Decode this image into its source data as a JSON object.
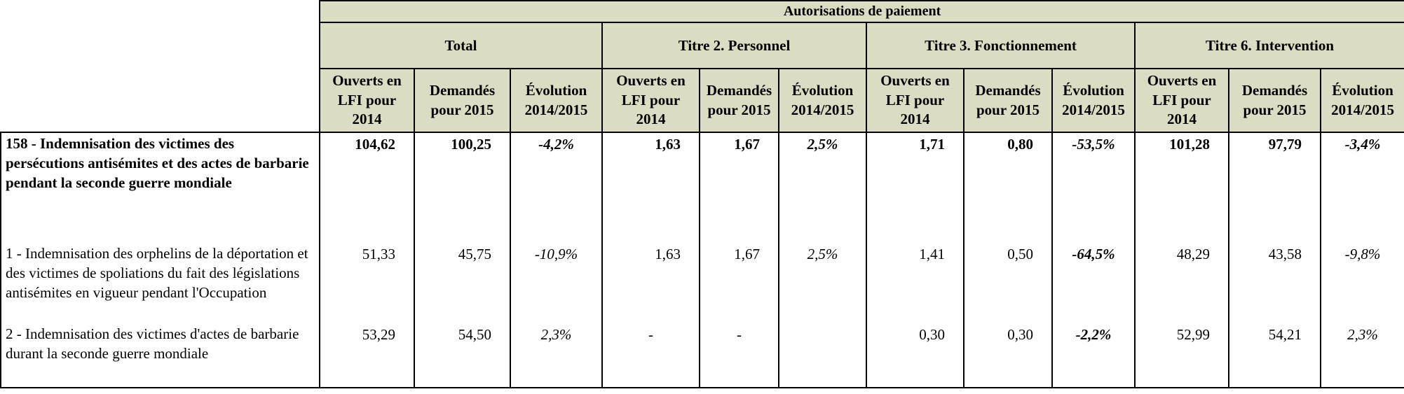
{
  "table": {
    "top_header": "Autorisations de paiement",
    "groups": [
      {
        "label": "Total"
      },
      {
        "label": "Titre 2. Personnel"
      },
      {
        "label": "Titre 3. Fonctionnement"
      },
      {
        "label": "Titre 6. Intervention"
      }
    ],
    "sub_headers": [
      "Ouverts en LFI pour 2014",
      "Demandés pour 2015",
      "Évolution 2014/2015"
    ],
    "colors": {
      "header_bg": "#DCDBC3",
      "border": "#000000"
    },
    "rows": [
      {
        "label": "158 - Indemnisation des victimes des persécutions antisémites et des actes de barbarie pendant la seconde guerre mondiale",
        "label_bold": true,
        "cells": [
          {
            "text": "104,62",
            "align": "right",
            "bold": true,
            "italic": false
          },
          {
            "text": "100,25",
            "align": "right",
            "bold": true,
            "italic": false
          },
          {
            "text": "-4,2%",
            "align": "center",
            "bold": true,
            "italic": true
          },
          {
            "text": "1,63",
            "align": "right",
            "bold": true,
            "italic": false
          },
          {
            "text": "1,67",
            "align": "right",
            "bold": true,
            "italic": false
          },
          {
            "text": "2,5%",
            "align": "center",
            "bold": true,
            "italic": true
          },
          {
            "text": "1,71",
            "align": "right",
            "bold": true,
            "italic": false
          },
          {
            "text": "0,80",
            "align": "right",
            "bold": true,
            "italic": false
          },
          {
            "text": "-53,5%",
            "align": "center",
            "bold": true,
            "italic": true
          },
          {
            "text": "101,28",
            "align": "right",
            "bold": true,
            "italic": false
          },
          {
            "text": "97,79",
            "align": "right",
            "bold": true,
            "italic": false
          },
          {
            "text": "-3,4%",
            "align": "center",
            "bold": true,
            "italic": true
          }
        ]
      },
      {
        "label": "1 - Indemnisation des orphelins de la déportation et des victimes de spoliations du fait des législations antisémites en vigueur pendant l'Occupation",
        "label_bold": false,
        "cells": [
          {
            "text": "51,33",
            "align": "right",
            "bold": false,
            "italic": false
          },
          {
            "text": "45,75",
            "align": "right",
            "bold": false,
            "italic": false
          },
          {
            "text": "-10,9%",
            "align": "center",
            "bold": false,
            "italic": true
          },
          {
            "text": "1,63",
            "align": "right",
            "bold": false,
            "italic": false
          },
          {
            "text": "1,67",
            "align": "right",
            "bold": false,
            "italic": false
          },
          {
            "text": "2,5%",
            "align": "center",
            "bold": false,
            "italic": true
          },
          {
            "text": "1,41",
            "align": "right",
            "bold": false,
            "italic": false
          },
          {
            "text": "0,50",
            "align": "right",
            "bold": false,
            "italic": false
          },
          {
            "text": "-64,5%",
            "align": "center",
            "bold": true,
            "italic": true
          },
          {
            "text": "48,29",
            "align": "right",
            "bold": false,
            "italic": false
          },
          {
            "text": "43,58",
            "align": "right",
            "bold": false,
            "italic": false
          },
          {
            "text": "-9,8%",
            "align": "center",
            "bold": false,
            "italic": true
          }
        ]
      },
      {
        "label": "2 - Indemnisation des victimes d'actes de barbarie durant la seconde guerre mondiale",
        "label_bold": false,
        "cells": [
          {
            "text": "53,29",
            "align": "right",
            "bold": false,
            "italic": false
          },
          {
            "text": "54,50",
            "align": "right",
            "bold": false,
            "italic": false
          },
          {
            "text": "2,3%",
            "align": "center",
            "bold": false,
            "italic": true
          },
          {
            "text": "-",
            "align": "center",
            "bold": false,
            "italic": false
          },
          {
            "text": "-",
            "align": "center",
            "bold": false,
            "italic": false
          },
          {
            "text": "",
            "align": "center",
            "bold": false,
            "italic": false
          },
          {
            "text": "0,30",
            "align": "right",
            "bold": false,
            "italic": false
          },
          {
            "text": "0,30",
            "align": "right",
            "bold": false,
            "italic": false
          },
          {
            "text": "-2,2%",
            "align": "center",
            "bold": true,
            "italic": true
          },
          {
            "text": "52,99",
            "align": "right",
            "bold": false,
            "italic": false
          },
          {
            "text": "54,21",
            "align": "right",
            "bold": false,
            "italic": false
          },
          {
            "text": "2,3%",
            "align": "center",
            "bold": false,
            "italic": true
          }
        ]
      }
    ]
  }
}
